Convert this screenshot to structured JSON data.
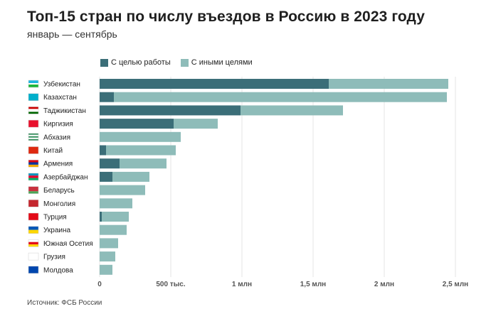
{
  "header": {
    "title": "Топ-15 стран по числу въездов в Россию в 2023 году",
    "subtitle": "январь — сентябрь"
  },
  "legend": {
    "work_label": "С целью работы",
    "other_label": "С иными целями"
  },
  "colors": {
    "work": "#3b6e78",
    "other": "#8ebcb9",
    "grid": "#e6e6e6"
  },
  "source": "Источник: ФСБ России",
  "chart_data": {
    "type": "bar",
    "orientation": "horizontal",
    "stacked": true,
    "title": "Топ-15 стран по числу въездов в Россию в 2023 году",
    "subtitle": "январь — сентябрь",
    "xlim": [
      0,
      2500000
    ],
    "ticks": [
      {
        "value": 0,
        "label": "0"
      },
      {
        "value": 500000,
        "label": "500 тыс."
      },
      {
        "value": 1000000,
        "label": "1 млн"
      },
      {
        "value": 1500000,
        "label": "1,5 млн"
      },
      {
        "value": 2000000,
        "label": "2 млн"
      },
      {
        "value": 2500000,
        "label": "2,5 млн"
      }
    ],
    "grid": true,
    "legend_position": "top-left",
    "categories": [
      "Узбекистан",
      "Казахстан",
      "Таджикистан",
      "Киргизия",
      "Абхазия",
      "Китай",
      "Армения",
      "Азербайджан",
      "Беларусь",
      "Монголия",
      "Турция",
      "Украина",
      "Южная Осетия",
      "Грузия",
      "Молдова"
    ],
    "flag_icons": [
      "flag-uzbekistan-icon",
      "flag-kazakhstan-icon",
      "flag-tajikistan-icon",
      "flag-kyrgyzstan-icon",
      "flag-abkhazia-icon",
      "flag-china-icon",
      "flag-armenia-icon",
      "flag-azerbaijan-icon",
      "flag-belarus-icon",
      "flag-mongolia-icon",
      "flag-turkey-icon",
      "flag-ukraine-icon",
      "flag-south-ossetia-icon",
      "flag-georgia-icon",
      "flag-moldova-icon"
    ],
    "series": [
      {
        "name": "С целью работы",
        "values": [
          1610000,
          100000,
          990000,
          520000,
          0,
          45000,
          140000,
          90000,
          0,
          0,
          15000,
          0,
          0,
          0,
          0
        ]
      },
      {
        "name": "С иными целями",
        "values": [
          840000,
          2340000,
          720000,
          310000,
          570000,
          490000,
          330000,
          260000,
          320000,
          230000,
          190000,
          190000,
          130000,
          110000,
          90000
        ]
      }
    ]
  }
}
